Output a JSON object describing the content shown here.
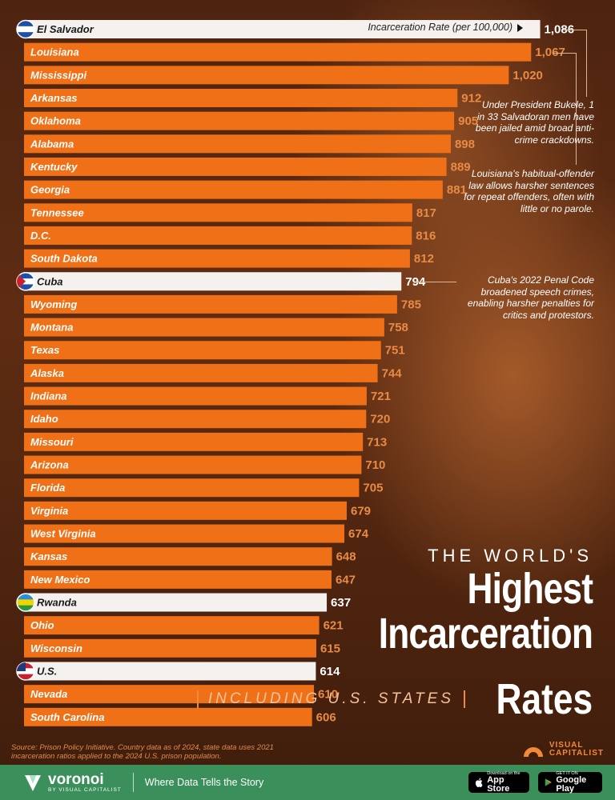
{
  "chart_data": {
    "type": "bar",
    "orientation": "horizontal",
    "axis_label": "Incarceration Rate (per 100,000)",
    "highlight_color": "#f4f1ee",
    "bar_color": "#ef7016",
    "categories": [
      "El Salvador",
      "Louisiana",
      "Mississippi",
      "Arkansas",
      "Oklahoma",
      "Alabama",
      "Kentucky",
      "Georgia",
      "Tennessee",
      "D.C.",
      "South Dakota",
      "Cuba",
      "Wyoming",
      "Montana",
      "Texas",
      "Alaska",
      "Indiana",
      "Idaho",
      "Missouri",
      "Arizona",
      "Florida",
      "Virginia",
      "West Virginia",
      "Kansas",
      "New Mexico",
      "Rwanda",
      "Ohio",
      "Wisconsin",
      "U.S.",
      "Nevada",
      "South Carolina"
    ],
    "values": [
      1086,
      1067,
      1020,
      912,
      905,
      898,
      889,
      881,
      817,
      816,
      812,
      794,
      785,
      758,
      751,
      744,
      721,
      720,
      713,
      710,
      705,
      679,
      674,
      648,
      647,
      637,
      621,
      615,
      614,
      610,
      606
    ],
    "value_labels": [
      "1,086",
      "1,067",
      "1,020",
      "912",
      "905",
      "898",
      "889",
      "881",
      "817",
      "816",
      "812",
      "794",
      "785",
      "758",
      "751",
      "744",
      "721",
      "720",
      "713",
      "710",
      "705",
      "679",
      "674",
      "648",
      "647",
      "637",
      "621",
      "615",
      "614",
      "610",
      "606"
    ],
    "highlighted": [
      "El Salvador",
      "Cuba",
      "Rwanda",
      "U.S."
    ]
  },
  "annotations": {
    "el_salvador": "Under President Bukele, 1 in 33 Salvadoran men have been jailed amid broad anti-crime crackdowns.",
    "louisiana": "Louisiana's habitual-offender law allows harsher sentences for repeat offenders, often with little or no parole.",
    "cuba": "Cuba's 2022 Penal Code broadened speech crimes, enabling harsher penalties for critics and protestors."
  },
  "title": {
    "top": "THE WORLD'S",
    "main1": "Highest",
    "main2": "Incarceration",
    "sub": "INCLUDING U.S. STATES",
    "last": "Rates"
  },
  "source": "Source: Prison Policy Initiative. Country data as of 2024, state data uses 2021 incarceration ratios applied to the 2024 U.S. prison population.",
  "brand": {
    "vc_line1": "VISUAL",
    "vc_line2": "CAPITALIST",
    "color": "#f08a3a"
  },
  "footer": {
    "name": "voronoi",
    "by": "BY VISUAL CAPITALIST",
    "tagline": "Where Data Tells the Story",
    "app_store_small": "Download on the",
    "app_store_big": "App Store",
    "google_small": "GET IT ON",
    "google_big": "Google Play",
    "bg": "#3a8f5a"
  }
}
